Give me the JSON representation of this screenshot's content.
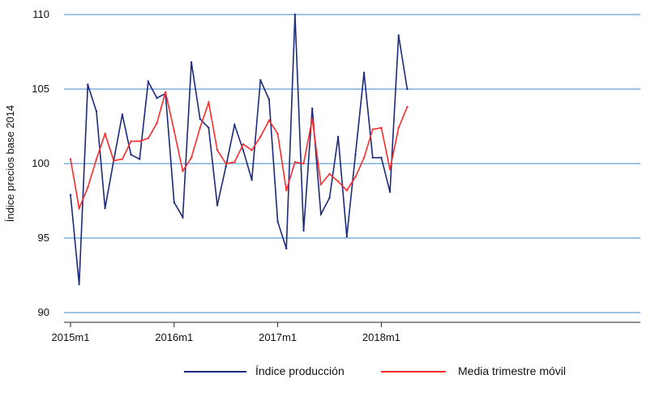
{
  "chart_data": {
    "type": "line",
    "ylabel": "Índice  precios base 2014",
    "ylim": [
      90,
      110
    ],
    "yticks": [
      "90",
      "95",
      "100",
      "105",
      "110"
    ],
    "x": [
      "2015m1",
      "2015m2",
      "2015m3",
      "2015m4",
      "2015m5",
      "2015m6",
      "2015m7",
      "2015m8",
      "2015m9",
      "2015m10",
      "2015m11",
      "2015m12",
      "2016m1",
      "2016m2",
      "2016m3",
      "2016m4",
      "2016m5",
      "2016m6",
      "2016m7",
      "2016m8",
      "2016m9",
      "2016m10",
      "2016m11",
      "2016m12",
      "2017m1",
      "2017m2",
      "2017m3",
      "2017m4",
      "2017m5",
      "2017m6",
      "2017m7",
      "2017m8",
      "2017m9",
      "2017m10",
      "2017m11",
      "2017m12",
      "2018m1",
      "2018m2",
      "2018m3",
      "2018m4"
    ],
    "xtick_labels": [
      "2015m1",
      "2016m1",
      "2017m1",
      "2018m1"
    ],
    "grid": true,
    "legend_position": "bottom",
    "series": [
      {
        "name": "Índice producción",
        "color": "#1b2a7a",
        "values": [
          97.9,
          91.9,
          105.3,
          103.5,
          97.0,
          100.2,
          103.3,
          100.6,
          100.3,
          105.5,
          104.4,
          104.7,
          97.4,
          96.4,
          106.8,
          103.0,
          102.4,
          97.2,
          99.8,
          102.6,
          100.9,
          98.9,
          105.6,
          104.3,
          96.1,
          94.3,
          110.0,
          95.5,
          103.7,
          96.6,
          97.7,
          101.8,
          95.1,
          100.6,
          106.1,
          100.4,
          100.4,
          98.1,
          108.6,
          105.0
        ]
      },
      {
        "name": "Media trimestre móvil",
        "color": "#ff2a2a",
        "values": [
          100.3,
          97.0,
          98.4,
          100.3,
          102.0,
          100.2,
          100.3,
          101.5,
          101.5,
          101.7,
          102.7,
          104.8,
          102.2,
          99.5,
          100.4,
          102.4,
          104.1,
          100.9,
          100.0,
          100.1,
          101.3,
          100.9,
          101.8,
          102.9,
          102.0,
          98.2,
          100.1,
          100.0,
          103.0,
          98.6,
          99.3,
          98.8,
          98.2,
          99.1,
          100.4,
          102.3,
          102.4,
          99.6,
          102.4,
          103.8
        ]
      }
    ]
  }
}
